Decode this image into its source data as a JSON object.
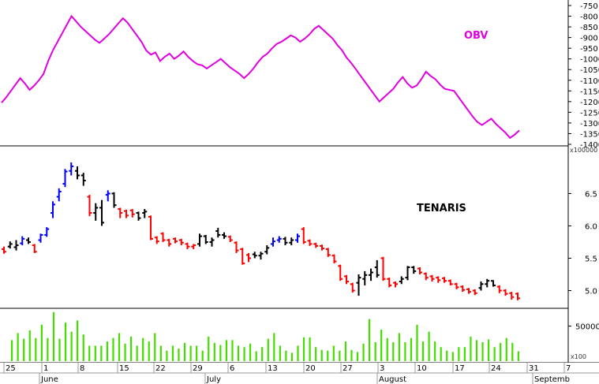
{
  "chart_data": [
    {
      "type": "line",
      "title": "OBV",
      "title_color": "#e000e0",
      "line_color": "#e000e0",
      "grid": false,
      "ylim": [
        -1400,
        -750
      ],
      "yticks": [
        "-750",
        "-800",
        "-850",
        "-900",
        "-950",
        "-1000",
        "-1050",
        "-1100",
        "-1150",
        "-1200",
        "-1250",
        "-1300",
        "-1350",
        "-1400"
      ],
      "values": [
        -1205,
        -1180,
        -1150,
        -1120,
        -1090,
        -1115,
        -1145,
        -1125,
        -1100,
        -1070,
        -1010,
        -960,
        -920,
        -880,
        -840,
        -800,
        -825,
        -850,
        -870,
        -890,
        -910,
        -925,
        -905,
        -885,
        -860,
        -835,
        -810,
        -830,
        -860,
        -890,
        -920,
        -960,
        -980,
        -970,
        -1010,
        -990,
        -975,
        -1000,
        -985,
        -965,
        -990,
        -1010,
        -1025,
        -1030,
        -1045,
        -1030,
        -1015,
        -1000,
        -1020,
        -1040,
        -1055,
        -1070,
        -1090,
        -1070,
        -1045,
        -1015,
        -990,
        -975,
        -950,
        -930,
        -920,
        -905,
        -890,
        -900,
        -920,
        -905,
        -885,
        -860,
        -845,
        -865,
        -885,
        -905,
        -935,
        -960,
        -995,
        -1020,
        -1050,
        -1080,
        -1110,
        -1140,
        -1170,
        -1200,
        -1180,
        -1160,
        -1140,
        -1110,
        -1085,
        -1115,
        -1135,
        -1125,
        -1095,
        -1060,
        -1080,
        -1095,
        -1120,
        -1140,
        -1145,
        -1150,
        -1180,
        -1210,
        -1240,
        -1270,
        -1295,
        -1310,
        -1295,
        -1280,
        -1305,
        -1325,
        -1345,
        -1370,
        -1355,
        -1335
      ]
    },
    {
      "type": "bar",
      "title": "TENARIS",
      "subtitle": "x100000",
      "grid": false,
      "ylim": [
        4.75,
        7.2
      ],
      "yticks": [
        "6.5",
        "6.0",
        "5.5",
        "5.0"
      ],
      "ohlc_colors": {
        "up": "#0000ff",
        "down": "#ff0000",
        "neutral": "#000000"
      },
      "bars": [
        {
          "o": 5.64,
          "h": 5.68,
          "l": 5.57,
          "c": 5.6,
          "dir": "down"
        },
        {
          "o": 5.68,
          "h": 5.76,
          "l": 5.65,
          "c": 5.72,
          "dir": "neutral"
        },
        {
          "o": 5.67,
          "h": 5.78,
          "l": 5.62,
          "c": 5.7,
          "dir": "neutral"
        },
        {
          "o": 5.73,
          "h": 5.84,
          "l": 5.7,
          "c": 5.8,
          "dir": "up"
        },
        {
          "o": 5.78,
          "h": 5.82,
          "l": 5.72,
          "c": 5.75,
          "dir": "neutral"
        },
        {
          "o": 5.7,
          "h": 5.72,
          "l": 5.58,
          "c": 5.6,
          "dir": "down"
        },
        {
          "o": 5.78,
          "h": 5.88,
          "l": 5.74,
          "c": 5.86,
          "dir": "up"
        },
        {
          "o": 5.86,
          "h": 5.98,
          "l": 5.83,
          "c": 5.95,
          "dir": "up"
        },
        {
          "o": 6.2,
          "h": 6.38,
          "l": 6.12,
          "c": 6.33,
          "dir": "up"
        },
        {
          "o": 6.45,
          "h": 6.58,
          "l": 6.38,
          "c": 6.53,
          "dir": "up"
        },
        {
          "o": 6.65,
          "h": 6.88,
          "l": 6.6,
          "c": 6.84,
          "dir": "up"
        },
        {
          "o": 6.85,
          "h": 6.98,
          "l": 6.78,
          "c": 6.92,
          "dir": "up"
        },
        {
          "o": 6.85,
          "h": 6.92,
          "l": 6.72,
          "c": 6.78,
          "dir": "neutral"
        },
        {
          "o": 6.78,
          "h": 6.82,
          "l": 6.62,
          "c": 6.7,
          "dir": "neutral"
        },
        {
          "o": 6.45,
          "h": 6.48,
          "l": 6.15,
          "c": 6.2,
          "dir": "down"
        },
        {
          "o": 6.2,
          "h": 6.35,
          "l": 6.08,
          "c": 6.28,
          "dir": "neutral"
        },
        {
          "o": 6.28,
          "h": 6.4,
          "l": 6.0,
          "c": 6.05,
          "dir": "neutral"
        },
        {
          "o": 6.48,
          "h": 6.55,
          "l": 6.38,
          "c": 6.5,
          "dir": "up"
        },
        {
          "o": 6.5,
          "h": 6.52,
          "l": 6.28,
          "c": 6.32,
          "dir": "neutral"
        },
        {
          "o": 6.26,
          "h": 6.28,
          "l": 6.12,
          "c": 6.2,
          "dir": "down"
        },
        {
          "o": 6.23,
          "h": 6.25,
          "l": 6.12,
          "c": 6.16,
          "dir": "down"
        },
        {
          "o": 6.24,
          "h": 6.26,
          "l": 6.13,
          "c": 6.18,
          "dir": "down"
        },
        {
          "o": 6.2,
          "h": 6.22,
          "l": 6.08,
          "c": 6.12,
          "dir": "neutral"
        },
        {
          "o": 6.2,
          "h": 6.26,
          "l": 6.12,
          "c": 6.22,
          "dir": "neutral"
        },
        {
          "o": 6.14,
          "h": 6.16,
          "l": 5.78,
          "c": 5.8,
          "dir": "down"
        },
        {
          "o": 5.82,
          "h": 5.84,
          "l": 5.72,
          "c": 5.76,
          "dir": "down"
        },
        {
          "o": 5.88,
          "h": 5.9,
          "l": 5.75,
          "c": 5.78,
          "dir": "down"
        },
        {
          "o": 5.78,
          "h": 5.8,
          "l": 5.68,
          "c": 5.72,
          "dir": "down"
        },
        {
          "o": 5.8,
          "h": 5.82,
          "l": 5.73,
          "c": 5.76,
          "dir": "down"
        },
        {
          "o": 5.78,
          "h": 5.8,
          "l": 5.7,
          "c": 5.74,
          "dir": "down"
        },
        {
          "o": 5.72,
          "h": 5.74,
          "l": 5.64,
          "c": 5.68,
          "dir": "down"
        },
        {
          "o": 5.68,
          "h": 5.72,
          "l": 5.64,
          "c": 5.7,
          "dir": "down"
        },
        {
          "o": 5.72,
          "h": 5.88,
          "l": 5.68,
          "c": 5.84,
          "dir": "neutral"
        },
        {
          "o": 5.84,
          "h": 5.86,
          "l": 5.72,
          "c": 5.75,
          "dir": "neutral"
        },
        {
          "o": 5.75,
          "h": 5.82,
          "l": 5.68,
          "c": 5.78,
          "dir": "neutral"
        },
        {
          "o": 5.92,
          "h": 5.97,
          "l": 5.82,
          "c": 5.86,
          "dir": "neutral"
        },
        {
          "o": 5.86,
          "h": 5.9,
          "l": 5.8,
          "c": 5.84,
          "dir": "neutral"
        },
        {
          "o": 5.83,
          "h": 5.85,
          "l": 5.75,
          "c": 5.78,
          "dir": "down"
        },
        {
          "o": 5.74,
          "h": 5.76,
          "l": 5.58,
          "c": 5.62,
          "dir": "down"
        },
        {
          "o": 5.64,
          "h": 5.66,
          "l": 5.4,
          "c": 5.42,
          "dir": "down"
        },
        {
          "o": 5.55,
          "h": 5.58,
          "l": 5.44,
          "c": 5.5,
          "dir": "down"
        },
        {
          "o": 5.56,
          "h": 5.6,
          "l": 5.5,
          "c": 5.54,
          "dir": "neutral"
        },
        {
          "o": 5.54,
          "h": 5.6,
          "l": 5.48,
          "c": 5.57,
          "dir": "neutral"
        },
        {
          "o": 5.6,
          "h": 5.7,
          "l": 5.56,
          "c": 5.66,
          "dir": "neutral"
        },
        {
          "o": 5.72,
          "h": 5.82,
          "l": 5.68,
          "c": 5.76,
          "dir": "up"
        },
        {
          "o": 5.78,
          "h": 5.84,
          "l": 5.74,
          "c": 5.8,
          "dir": "up"
        },
        {
          "o": 5.8,
          "h": 5.83,
          "l": 5.7,
          "c": 5.74,
          "dir": "neutral"
        },
        {
          "o": 5.74,
          "h": 5.82,
          "l": 5.7,
          "c": 5.78,
          "dir": "neutral"
        },
        {
          "o": 5.78,
          "h": 5.88,
          "l": 5.74,
          "c": 5.84,
          "dir": "up"
        },
        {
          "o": 5.95,
          "h": 5.98,
          "l": 5.72,
          "c": 5.75,
          "dir": "down"
        },
        {
          "o": 5.77,
          "h": 5.79,
          "l": 5.69,
          "c": 5.72,
          "dir": "down"
        },
        {
          "o": 5.72,
          "h": 5.74,
          "l": 5.66,
          "c": 5.69,
          "dir": "down"
        },
        {
          "o": 5.69,
          "h": 5.71,
          "l": 5.62,
          "c": 5.65,
          "dir": "down"
        },
        {
          "o": 5.64,
          "h": 5.66,
          "l": 5.52,
          "c": 5.55,
          "dir": "down"
        },
        {
          "o": 5.54,
          "h": 5.56,
          "l": 5.42,
          "c": 5.45,
          "dir": "down"
        },
        {
          "o": 5.38,
          "h": 5.4,
          "l": 5.15,
          "c": 5.18,
          "dir": "down"
        },
        {
          "o": 5.22,
          "h": 5.24,
          "l": 5.1,
          "c": 5.14,
          "dir": "down"
        },
        {
          "o": 5.1,
          "h": 5.12,
          "l": 4.97,
          "c": 5.0,
          "dir": "down"
        },
        {
          "o": 5.12,
          "h": 5.25,
          "l": 4.92,
          "c": 5.2,
          "dir": "neutral"
        },
        {
          "o": 5.18,
          "h": 5.3,
          "l": 5.08,
          "c": 5.24,
          "dir": "neutral"
        },
        {
          "o": 5.24,
          "h": 5.34,
          "l": 5.15,
          "c": 5.28,
          "dir": "neutral"
        },
        {
          "o": 5.36,
          "h": 5.47,
          "l": 5.2,
          "c": 5.24,
          "dir": "neutral"
        },
        {
          "o": 5.5,
          "h": 5.52,
          "l": 5.15,
          "c": 5.18,
          "dir": "down"
        },
        {
          "o": 5.18,
          "h": 5.2,
          "l": 5.05,
          "c": 5.08,
          "dir": "down"
        },
        {
          "o": 5.12,
          "h": 5.14,
          "l": 5.05,
          "c": 5.1,
          "dir": "down"
        },
        {
          "o": 5.14,
          "h": 5.22,
          "l": 5.1,
          "c": 5.18,
          "dir": "neutral"
        },
        {
          "o": 5.2,
          "h": 5.38,
          "l": 5.16,
          "c": 5.36,
          "dir": "neutral"
        },
        {
          "o": 5.36,
          "h": 5.38,
          "l": 5.26,
          "c": 5.3,
          "dir": "neutral"
        },
        {
          "o": 5.34,
          "h": 5.36,
          "l": 5.25,
          "c": 5.28,
          "dir": "down"
        },
        {
          "o": 5.26,
          "h": 5.28,
          "l": 5.16,
          "c": 5.2,
          "dir": "down"
        },
        {
          "o": 5.22,
          "h": 5.24,
          "l": 5.14,
          "c": 5.18,
          "dir": "down"
        },
        {
          "o": 5.2,
          "h": 5.22,
          "l": 5.12,
          "c": 5.16,
          "dir": "down"
        },
        {
          "o": 5.19,
          "h": 5.21,
          "l": 5.12,
          "c": 5.15,
          "dir": "down"
        },
        {
          "o": 5.15,
          "h": 5.17,
          "l": 5.08,
          "c": 5.1,
          "dir": "down"
        },
        {
          "o": 5.1,
          "h": 5.12,
          "l": 5.02,
          "c": 5.05,
          "dir": "down"
        },
        {
          "o": 5.06,
          "h": 5.08,
          "l": 4.98,
          "c": 5.01,
          "dir": "down"
        },
        {
          "o": 5.02,
          "h": 5.04,
          "l": 4.95,
          "c": 4.98,
          "dir": "down"
        },
        {
          "o": 5.0,
          "h": 5.02,
          "l": 4.93,
          "c": 4.96,
          "dir": "down"
        },
        {
          "o": 5.04,
          "h": 5.14,
          "l": 5.0,
          "c": 5.1,
          "dir": "neutral"
        },
        {
          "o": 5.1,
          "h": 5.18,
          "l": 5.05,
          "c": 5.15,
          "dir": "neutral"
        },
        {
          "o": 5.15,
          "h": 5.16,
          "l": 5.06,
          "c": 5.08,
          "dir": "neutral"
        },
        {
          "o": 5.06,
          "h": 5.08,
          "l": 4.96,
          "c": 5.0,
          "dir": "down"
        },
        {
          "o": 5.0,
          "h": 5.02,
          "l": 4.92,
          "c": 4.95,
          "dir": "down"
        },
        {
          "o": 4.96,
          "h": 4.98,
          "l": 4.86,
          "c": 4.9,
          "dir": "down"
        },
        {
          "o": 4.95,
          "h": 4.97,
          "l": 4.85,
          "c": 4.88,
          "dir": "down"
        }
      ]
    },
    {
      "type": "bar",
      "title": "",
      "subtitle": "x100",
      "bar_color": "#44dd00",
      "grid": false,
      "ylim": [
        0,
        72000
      ],
      "yticks": [
        "50000"
      ],
      "values": [
        30000,
        40000,
        32000,
        44000,
        33000,
        52000,
        33000,
        70000,
        32000,
        55000,
        42000,
        58000,
        38000,
        22000,
        22000,
        22000,
        28000,
        33000,
        40000,
        25000,
        35000,
        22000,
        33000,
        28000,
        40000,
        22000,
        15000,
        22000,
        18000,
        26000,
        22000,
        22000,
        15000,
        35000,
        26000,
        23000,
        30000,
        30000,
        22000,
        20000,
        25000,
        14000,
        20000,
        32000,
        40000,
        22000,
        15000,
        12000,
        22000,
        34000,
        34000,
        20000,
        16000,
        15000,
        22000,
        15000,
        28000,
        16000,
        13000,
        25000,
        60000,
        27000,
        45000,
        33000,
        27000,
        40000,
        27000,
        33000,
        52000,
        28000,
        42000,
        28000,
        20000,
        15000,
        13000,
        20000,
        20000,
        35000,
        30000,
        27000,
        31000,
        20000,
        26000,
        33000,
        26000,
        14000
      ]
    }
  ],
  "x_axis": {
    "day_labels": [
      "25",
      "1",
      "8",
      "15",
      "22",
      "29",
      "6",
      "13",
      "20",
      "27",
      "3",
      "10",
      "17",
      "24",
      "31",
      "7"
    ],
    "month_labels": [
      "June",
      "July",
      "August",
      "Septemb"
    ]
  }
}
